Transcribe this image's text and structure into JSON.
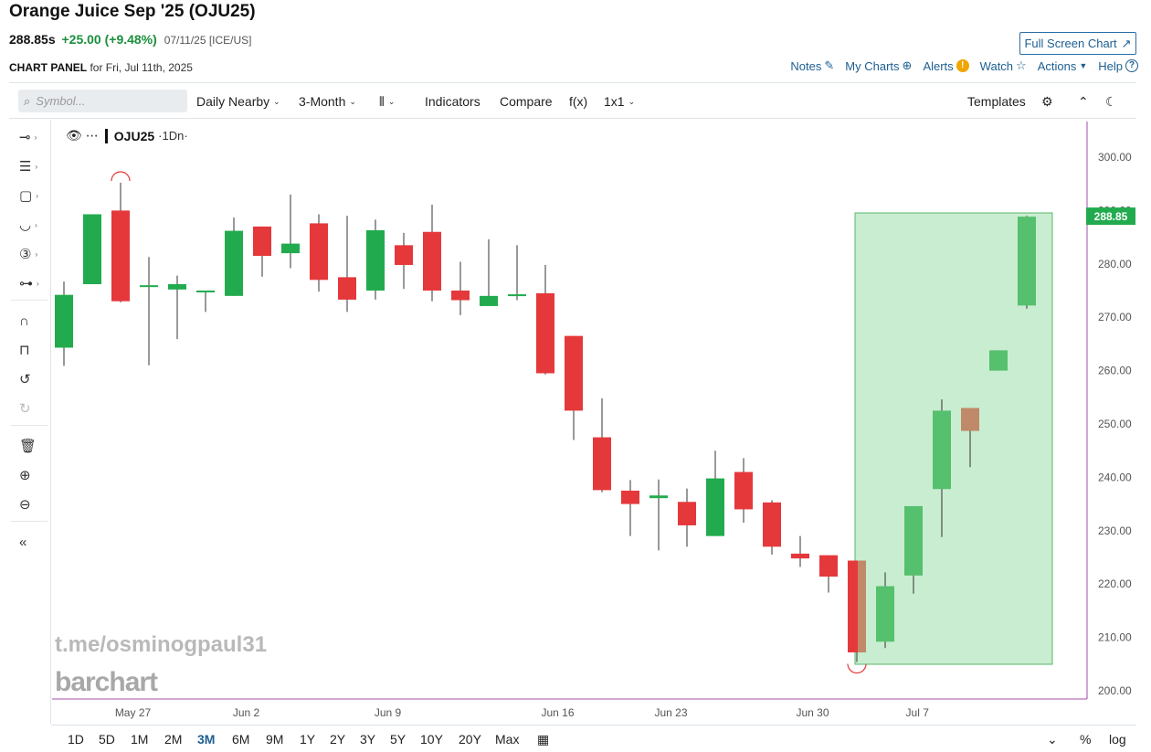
{
  "header": {
    "title": "Orange Juice Sep '25 (OJU25)",
    "last": "288.85s",
    "change": "+25.00 (+9.48%)",
    "meta": "07/11/25 [ICE/US]",
    "full_screen_label": "Full Screen Chart",
    "panel_label": "CHART PANEL",
    "panel_date": "for Fri, Jul 11th, 2025"
  },
  "links": {
    "notes": "Notes",
    "my_charts": "My Charts",
    "alerts": "Alerts",
    "watch": "Watch",
    "actions": "Actions",
    "help": "Help"
  },
  "toolbar": {
    "search_placeholder": "Symbol...",
    "interval": "Daily Nearby",
    "range": "3-Month",
    "indicators": "Indicators",
    "compare": "Compare",
    "fx": "f(x)",
    "layout": "1x1",
    "templates": "Templates"
  },
  "legend": {
    "symbol": "OJU25",
    "interval": "·1Dn·"
  },
  "watermarks": {
    "telegram": "t.me/osminogpaul31",
    "brand": "barchart"
  },
  "bottom": {
    "ranges": [
      "1D",
      "5D",
      "1M",
      "2M",
      "3M",
      "6M",
      "9M",
      "1Y",
      "2Y",
      "3Y",
      "5Y",
      "10Y",
      "20Y",
      "Max"
    ],
    "active": "3M",
    "percent": "%",
    "log": "log"
  },
  "colors": {
    "up": "#22ab4e",
    "down": "#e5383b",
    "highlight": "#c6ecce",
    "price_label_bg": "#22ab4e",
    "link": "#1d5f91"
  },
  "chart_data": {
    "type": "candlestick",
    "ylim": [
      200,
      300
    ],
    "y_ticks": [
      300,
      290,
      280,
      270,
      260,
      250,
      240,
      230,
      220,
      210,
      200
    ],
    "x_tick_labels": [
      "May 27",
      "Jun 2",
      "Jun 9",
      "Jun 16",
      "Jun 23",
      "Jun 30",
      "Jul 7"
    ],
    "last_price_label": "288.85",
    "last_price": 288.85,
    "candles": [
      {
        "o": 264.3,
        "h": 276.7,
        "l": 260.9,
        "c": 274.2
      },
      {
        "o": 276.2,
        "h": 289.3,
        "l": 276.2,
        "c": 289.3
      },
      {
        "o": 290.0,
        "h": 295.2,
        "l": 272.8,
        "c": 273.0
      },
      {
        "o": 276.0,
        "h": 281.3,
        "l": 261.0,
        "c": 276.0
      },
      {
        "o": 275.2,
        "h": 277.8,
        "l": 265.9,
        "c": 276.2
      },
      {
        "o": 275.0,
        "h": 275.0,
        "l": 271.0,
        "c": 275.0
      },
      {
        "o": 274.0,
        "h": 288.7,
        "l": 274.0,
        "c": 286.2
      },
      {
        "o": 287.0,
        "h": 287.0,
        "l": 277.6,
        "c": 281.5
      },
      {
        "o": 282.0,
        "h": 293.0,
        "l": 279.2,
        "c": 283.8
      },
      {
        "o": 287.6,
        "h": 289.3,
        "l": 274.8,
        "c": 277.0
      },
      {
        "o": 277.5,
        "h": 289.0,
        "l": 271.0,
        "c": 273.3
      },
      {
        "o": 275.0,
        "h": 288.3,
        "l": 273.3,
        "c": 286.3
      },
      {
        "o": 283.5,
        "h": 285.8,
        "l": 275.3,
        "c": 279.8
      },
      {
        "o": 286.0,
        "h": 291.1,
        "l": 273.0,
        "c": 275.0
      },
      {
        "o": 275.0,
        "h": 280.4,
        "l": 270.4,
        "c": 273.2
      },
      {
        "o": 272.1,
        "h": 284.6,
        "l": 272.1,
        "c": 274.0
      },
      {
        "o": 274.3,
        "h": 283.5,
        "l": 273.2,
        "c": 274.3
      },
      {
        "o": 274.5,
        "h": 279.8,
        "l": 259.3,
        "c": 259.5
      },
      {
        "o": 266.5,
        "h": 266.5,
        "l": 247.0,
        "c": 252.5
      },
      {
        "o": 247.5,
        "h": 254.8,
        "l": 237.2,
        "c": 237.6
      },
      {
        "o": 237.5,
        "h": 239.5,
        "l": 229.0,
        "c": 235.0
      },
      {
        "o": 236.1,
        "h": 239.6,
        "l": 226.3,
        "c": 236.6
      },
      {
        "o": 235.4,
        "h": 237.9,
        "l": 227.0,
        "c": 231.0
      },
      {
        "o": 229.0,
        "h": 245.0,
        "l": 229.0,
        "c": 239.8
      },
      {
        "o": 241.0,
        "h": 243.6,
        "l": 231.5,
        "c": 234.0
      },
      {
        "o": 235.3,
        "h": 235.7,
        "l": 225.5,
        "c": 227.0
      },
      {
        "o": 225.7,
        "h": 229.0,
        "l": 223.2,
        "c": 224.8
      },
      {
        "o": 225.4,
        "h": 225.4,
        "l": 218.4,
        "c": 221.4
      },
      {
        "o": 224.4,
        "h": 224.4,
        "l": 205.4,
        "c": 207.2
      },
      {
        "o": 209.2,
        "h": 222.2,
        "l": 208.0,
        "c": 219.6
      },
      {
        "o": 221.6,
        "h": 234.6,
        "l": 218.2,
        "c": 234.6
      },
      {
        "o": 237.8,
        "h": 254.6,
        "l": 228.8,
        "c": 252.5
      },
      {
        "o": 253.0,
        "h": 253.0,
        "l": 241.9,
        "c": 248.7
      },
      {
        "o": 260.0,
        "h": 263.8,
        "l": 260.0,
        "c": 263.8
      },
      {
        "o": 272.2,
        "h": 289.0,
        "l": 271.6,
        "c": 288.85
      }
    ]
  }
}
